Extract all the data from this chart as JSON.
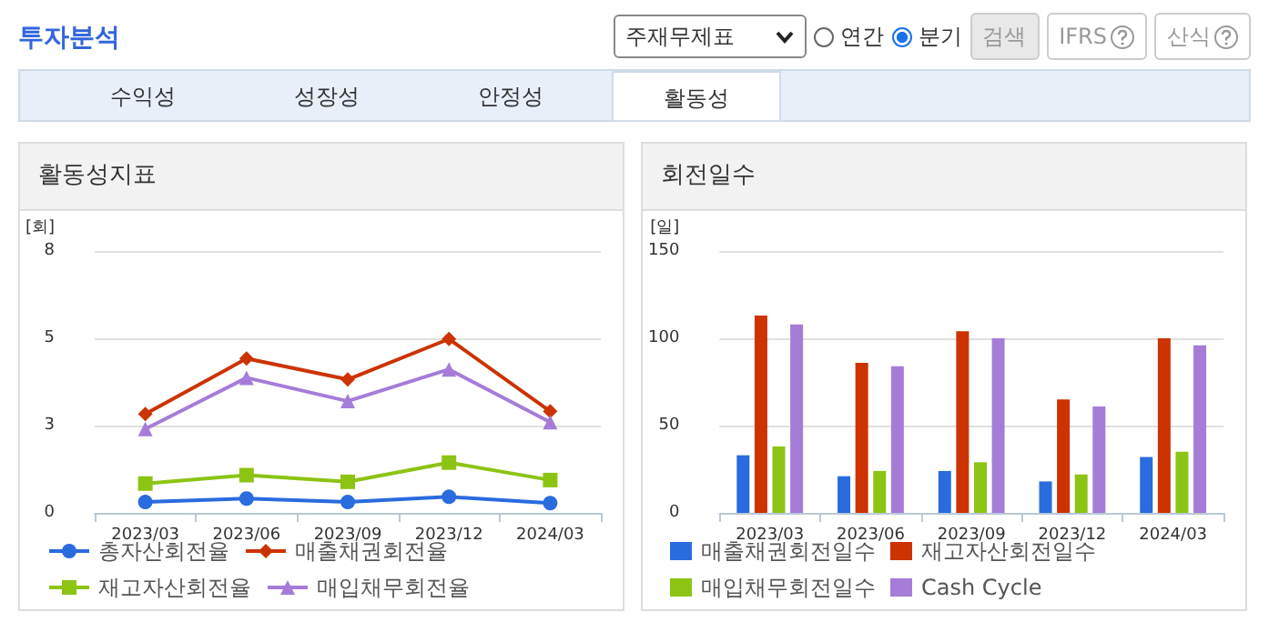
{
  "chart_data": [
    {
      "type": "other",
      "title": "투자분석",
      "annotations": [
        "주재무제표",
        "연간",
        "분기",
        "검색",
        "IFRS",
        "산식",
        "수익성",
        "성장성",
        "안정성",
        "활동성"
      ]
    },
    {
      "type": "line",
      "title": "활동성지표",
      "ylabel": "[회]",
      "categories": [
        "2023/03",
        "2023/06",
        "2023/09",
        "2023/12",
        "2024/03"
      ],
      "ylim": [
        0,
        7.5
      ],
      "yticks": [
        0,
        {
          "value": 2.5,
          "label": "3"
        },
        5,
        {
          "value": 7.5,
          "label": "8"
        }
      ],
      "grid": "y",
      "legend": "bottom",
      "series": [
        {
          "name": "총자산회전율",
          "color": "#2a6bde",
          "marker": "circle",
          "values": [
            0.31,
            0.41,
            0.31,
            0.46,
            0.28
          ]
        },
        {
          "name": "매출채권회전율",
          "color": "#cc3300",
          "marker": "diamond",
          "values": [
            2.83,
            4.42,
            3.82,
            4.98,
            2.91
          ]
        },
        {
          "name": "재고자산회전율",
          "color": "#8cc414",
          "marker": "square",
          "values": [
            0.84,
            1.08,
            0.89,
            1.44,
            0.94
          ]
        },
        {
          "name": "매입채무회전율",
          "color": "#a57cd8",
          "marker": "triangle",
          "values": [
            2.4,
            3.87,
            3.2,
            4.11,
            2.6
          ]
        }
      ]
    },
    {
      "type": "bar",
      "title": "회전일수",
      "ylabel": "[일]",
      "categories": [
        "2023/03",
        "2023/06",
        "2023/09",
        "2023/12",
        "2024/03"
      ],
      "ylim": [
        0,
        150
      ],
      "yticks": [
        0,
        50,
        100,
        150
      ],
      "grid": "y",
      "legend": "bottom",
      "series": [
        {
          "name": "매출채권회전일수",
          "color": "#2a6bde",
          "values": [
            33,
            21,
            24,
            18,
            32
          ]
        },
        {
          "name": "재고자산회전일수",
          "color": "#cc3300",
          "values": [
            113,
            86,
            104,
            65,
            100
          ]
        },
        {
          "name": "매입채무회전일수",
          "color": "#8cc414",
          "values": [
            38,
            24,
            29,
            22,
            35
          ]
        },
        {
          "name": "Cash Cycle",
          "color": "#a57cd8",
          "values": [
            108,
            84,
            100,
            61,
            96
          ]
        }
      ]
    }
  ]
}
